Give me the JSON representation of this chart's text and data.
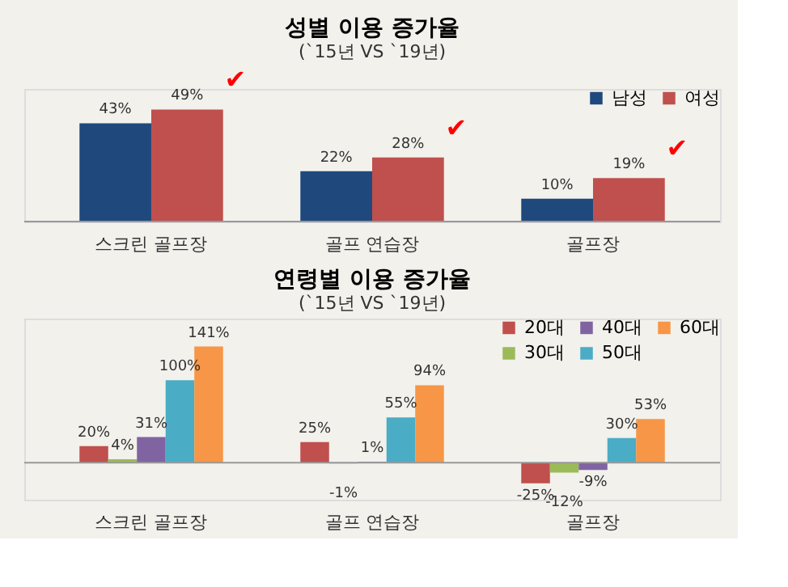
{
  "chart_data": [
    {
      "type": "bar",
      "title": "성별 이용 증가율",
      "subtitle": "(`15년 VS `19년)",
      "categories": [
        "스크린 골프장",
        "골프 연습장",
        "골프장"
      ],
      "legend": "top right",
      "ylim": [
        0,
        58
      ],
      "tick_labels": "x",
      "grid": false,
      "series": [
        {
          "name": "남성",
          "color": "#1f497d",
          "values": [
            43,
            22,
            10
          ],
          "value_labels": [
            "43%",
            "22%",
            "10%"
          ]
        },
        {
          "name": "여성",
          "color": "#c0504d",
          "values": [
            49,
            28,
            19
          ],
          "value_labels": [
            "49%",
            "28%",
            "19%"
          ]
        }
      ],
      "annotations": [
        "✔",
        "✔",
        "✔"
      ]
    },
    {
      "type": "bar",
      "title": "연령별 이용 증가율",
      "subtitle": "(`15년 VS `19년)",
      "categories": [
        "스크린 골프장",
        "골프 연습장",
        "골프장"
      ],
      "legend": "top right",
      "ylim": [
        -45,
        175
      ],
      "tick_labels": "x",
      "grid": false,
      "series": [
        {
          "name": "20대",
          "color": "#c0504d",
          "values": [
            20,
            25,
            -25
          ],
          "value_labels": [
            "20%",
            "25%",
            "-25%"
          ]
        },
        {
          "name": "30대",
          "color": "#9bbb59",
          "values": [
            4,
            -1,
            -12
          ],
          "value_labels": [
            "4%",
            "-1%",
            "-12%"
          ]
        },
        {
          "name": "40대",
          "color": "#8064a2",
          "values": [
            31,
            1,
            -9
          ],
          "value_labels": [
            "31%",
            "1%",
            "-9%"
          ]
        },
        {
          "name": "50대",
          "color": "#4bacc6",
          "values": [
            100,
            55,
            30
          ],
          "value_labels": [
            "100%",
            "55%",
            "30%"
          ]
        },
        {
          "name": "60대",
          "color": "#f79646",
          "values": [
            141,
            94,
            53
          ],
          "value_labels": [
            "141%",
            "94%",
            "53%"
          ]
        }
      ]
    }
  ]
}
